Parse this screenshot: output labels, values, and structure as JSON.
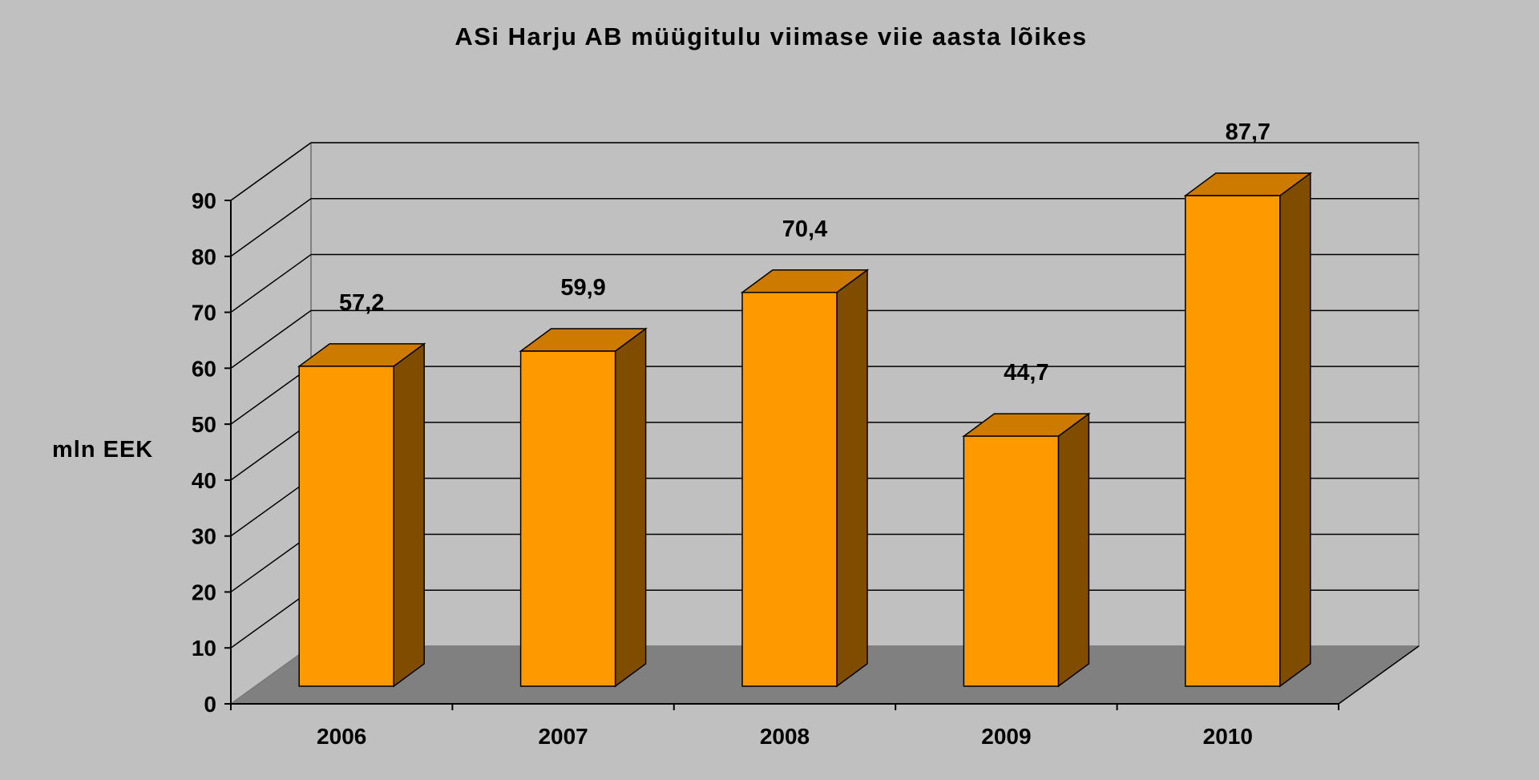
{
  "chart_data": {
    "type": "bar",
    "style": "3d-column",
    "title": "ASi Harju AB müügitulu viimase viie aasta lõikes",
    "ylabel": "mln EEK",
    "xlabel": "",
    "categories": [
      "2006",
      "2007",
      "2008",
      "2009",
      "2010"
    ],
    "values": [
      57.2,
      59.9,
      70.4,
      44.7,
      87.7
    ],
    "data_labels": [
      "57,2",
      "59,9",
      "70,4",
      "44,7",
      "87,7"
    ],
    "yticks": [
      "0",
      "10",
      "20",
      "30",
      "40",
      "50",
      "60",
      "70",
      "80",
      "90"
    ],
    "ylim": [
      0,
      90
    ],
    "grid": true,
    "legend": "none",
    "colors": {
      "bar_front": "#ff9900",
      "bar_top": "#cc7a00",
      "bar_side": "#7f4c00",
      "floor": "#808080",
      "background": "#c0c0c0",
      "gridline": "#000000"
    }
  }
}
